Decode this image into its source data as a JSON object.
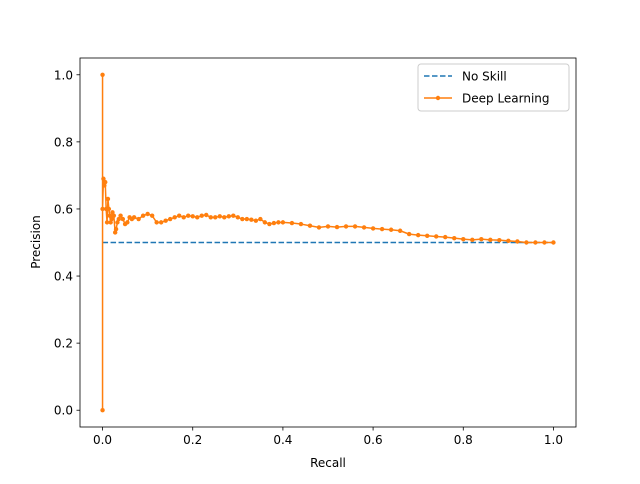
{
  "chart_data": {
    "type": "line",
    "title": "",
    "xlabel": "Recall",
    "ylabel": "Precision",
    "xlim": [
      -0.05,
      1.05
    ],
    "ylim": [
      -0.05,
      1.05
    ],
    "xticks": [
      0.0,
      0.2,
      0.4,
      0.6,
      0.8,
      1.0
    ],
    "yticks": [
      0.0,
      0.2,
      0.4,
      0.6,
      0.8,
      1.0
    ],
    "xtick_labels": [
      "0.0",
      "0.2",
      "0.4",
      "0.6",
      "0.8",
      "1.0"
    ],
    "ytick_labels": [
      "0.0",
      "0.2",
      "0.4",
      "0.6",
      "0.8",
      "1.0"
    ],
    "grid": false,
    "legend_position": "upper right",
    "series": [
      {
        "name": "No Skill",
        "style": "dashed",
        "marker": "none",
        "color": "#1f77b4",
        "x": [
          0.0,
          1.0
        ],
        "y": [
          0.5,
          0.5
        ]
      },
      {
        "name": "Deep Learning",
        "style": "solid",
        "marker": "dot",
        "color": "#ff7f0e",
        "x": [
          0.0,
          0.0,
          0.0,
          0.002,
          0.004,
          0.006,
          0.008,
          0.01,
          0.012,
          0.014,
          0.016,
          0.018,
          0.02,
          0.022,
          0.025,
          0.028,
          0.03,
          0.033,
          0.036,
          0.04,
          0.045,
          0.05,
          0.055,
          0.06,
          0.065,
          0.07,
          0.08,
          0.09,
          0.1,
          0.11,
          0.12,
          0.13,
          0.14,
          0.15,
          0.16,
          0.17,
          0.18,
          0.19,
          0.2,
          0.21,
          0.22,
          0.23,
          0.24,
          0.25,
          0.26,
          0.27,
          0.28,
          0.29,
          0.3,
          0.31,
          0.32,
          0.33,
          0.34,
          0.35,
          0.36,
          0.37,
          0.38,
          0.39,
          0.4,
          0.42,
          0.44,
          0.46,
          0.48,
          0.5,
          0.52,
          0.54,
          0.56,
          0.58,
          0.6,
          0.62,
          0.64,
          0.66,
          0.68,
          0.7,
          0.72,
          0.74,
          0.76,
          0.78,
          0.8,
          0.82,
          0.84,
          0.86,
          0.88,
          0.9,
          0.92,
          0.94,
          0.96,
          0.98,
          1.0
        ],
        "y": [
          0.0,
          1.0,
          0.6,
          0.69,
          0.67,
          0.68,
          0.6,
          0.56,
          0.63,
          0.6,
          0.58,
          0.56,
          0.57,
          0.59,
          0.58,
          0.53,
          0.54,
          0.56,
          0.57,
          0.58,
          0.57,
          0.555,
          0.56,
          0.575,
          0.57,
          0.575,
          0.57,
          0.58,
          0.585,
          0.58,
          0.56,
          0.56,
          0.565,
          0.57,
          0.575,
          0.58,
          0.575,
          0.58,
          0.578,
          0.575,
          0.58,
          0.582,
          0.575,
          0.575,
          0.578,
          0.575,
          0.578,
          0.58,
          0.575,
          0.57,
          0.57,
          0.568,
          0.565,
          0.57,
          0.56,
          0.555,
          0.558,
          0.56,
          0.56,
          0.558,
          0.555,
          0.55,
          0.545,
          0.548,
          0.546,
          0.548,
          0.548,
          0.545,
          0.542,
          0.54,
          0.538,
          0.535,
          0.525,
          0.522,
          0.52,
          0.518,
          0.516,
          0.513,
          0.51,
          0.508,
          0.51,
          0.508,
          0.507,
          0.505,
          0.503,
          0.5,
          0.5,
          0.5,
          0.5
        ]
      }
    ]
  }
}
